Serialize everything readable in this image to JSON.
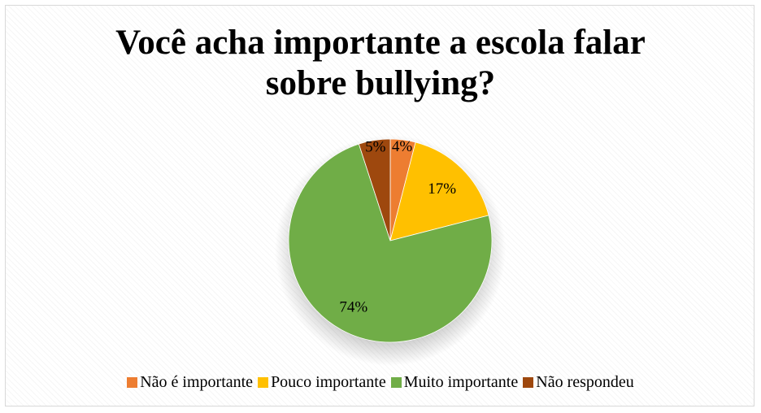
{
  "chart_data": {
    "type": "pie",
    "title_lines": [
      "Você acha importante a escola falar",
      "sobre bullying?"
    ],
    "categories": [
      "Não é importante",
      "Pouco importante",
      "Muito importante",
      "Não respondeu"
    ],
    "values": [
      4,
      17,
      74,
      5
    ],
    "data_labels": [
      "4%",
      "17%",
      "74%",
      "5%"
    ],
    "colors": [
      "#ed7d31",
      "#ffc000",
      "#70ad47",
      "#9e480e"
    ],
    "legend_position": "bottom"
  }
}
